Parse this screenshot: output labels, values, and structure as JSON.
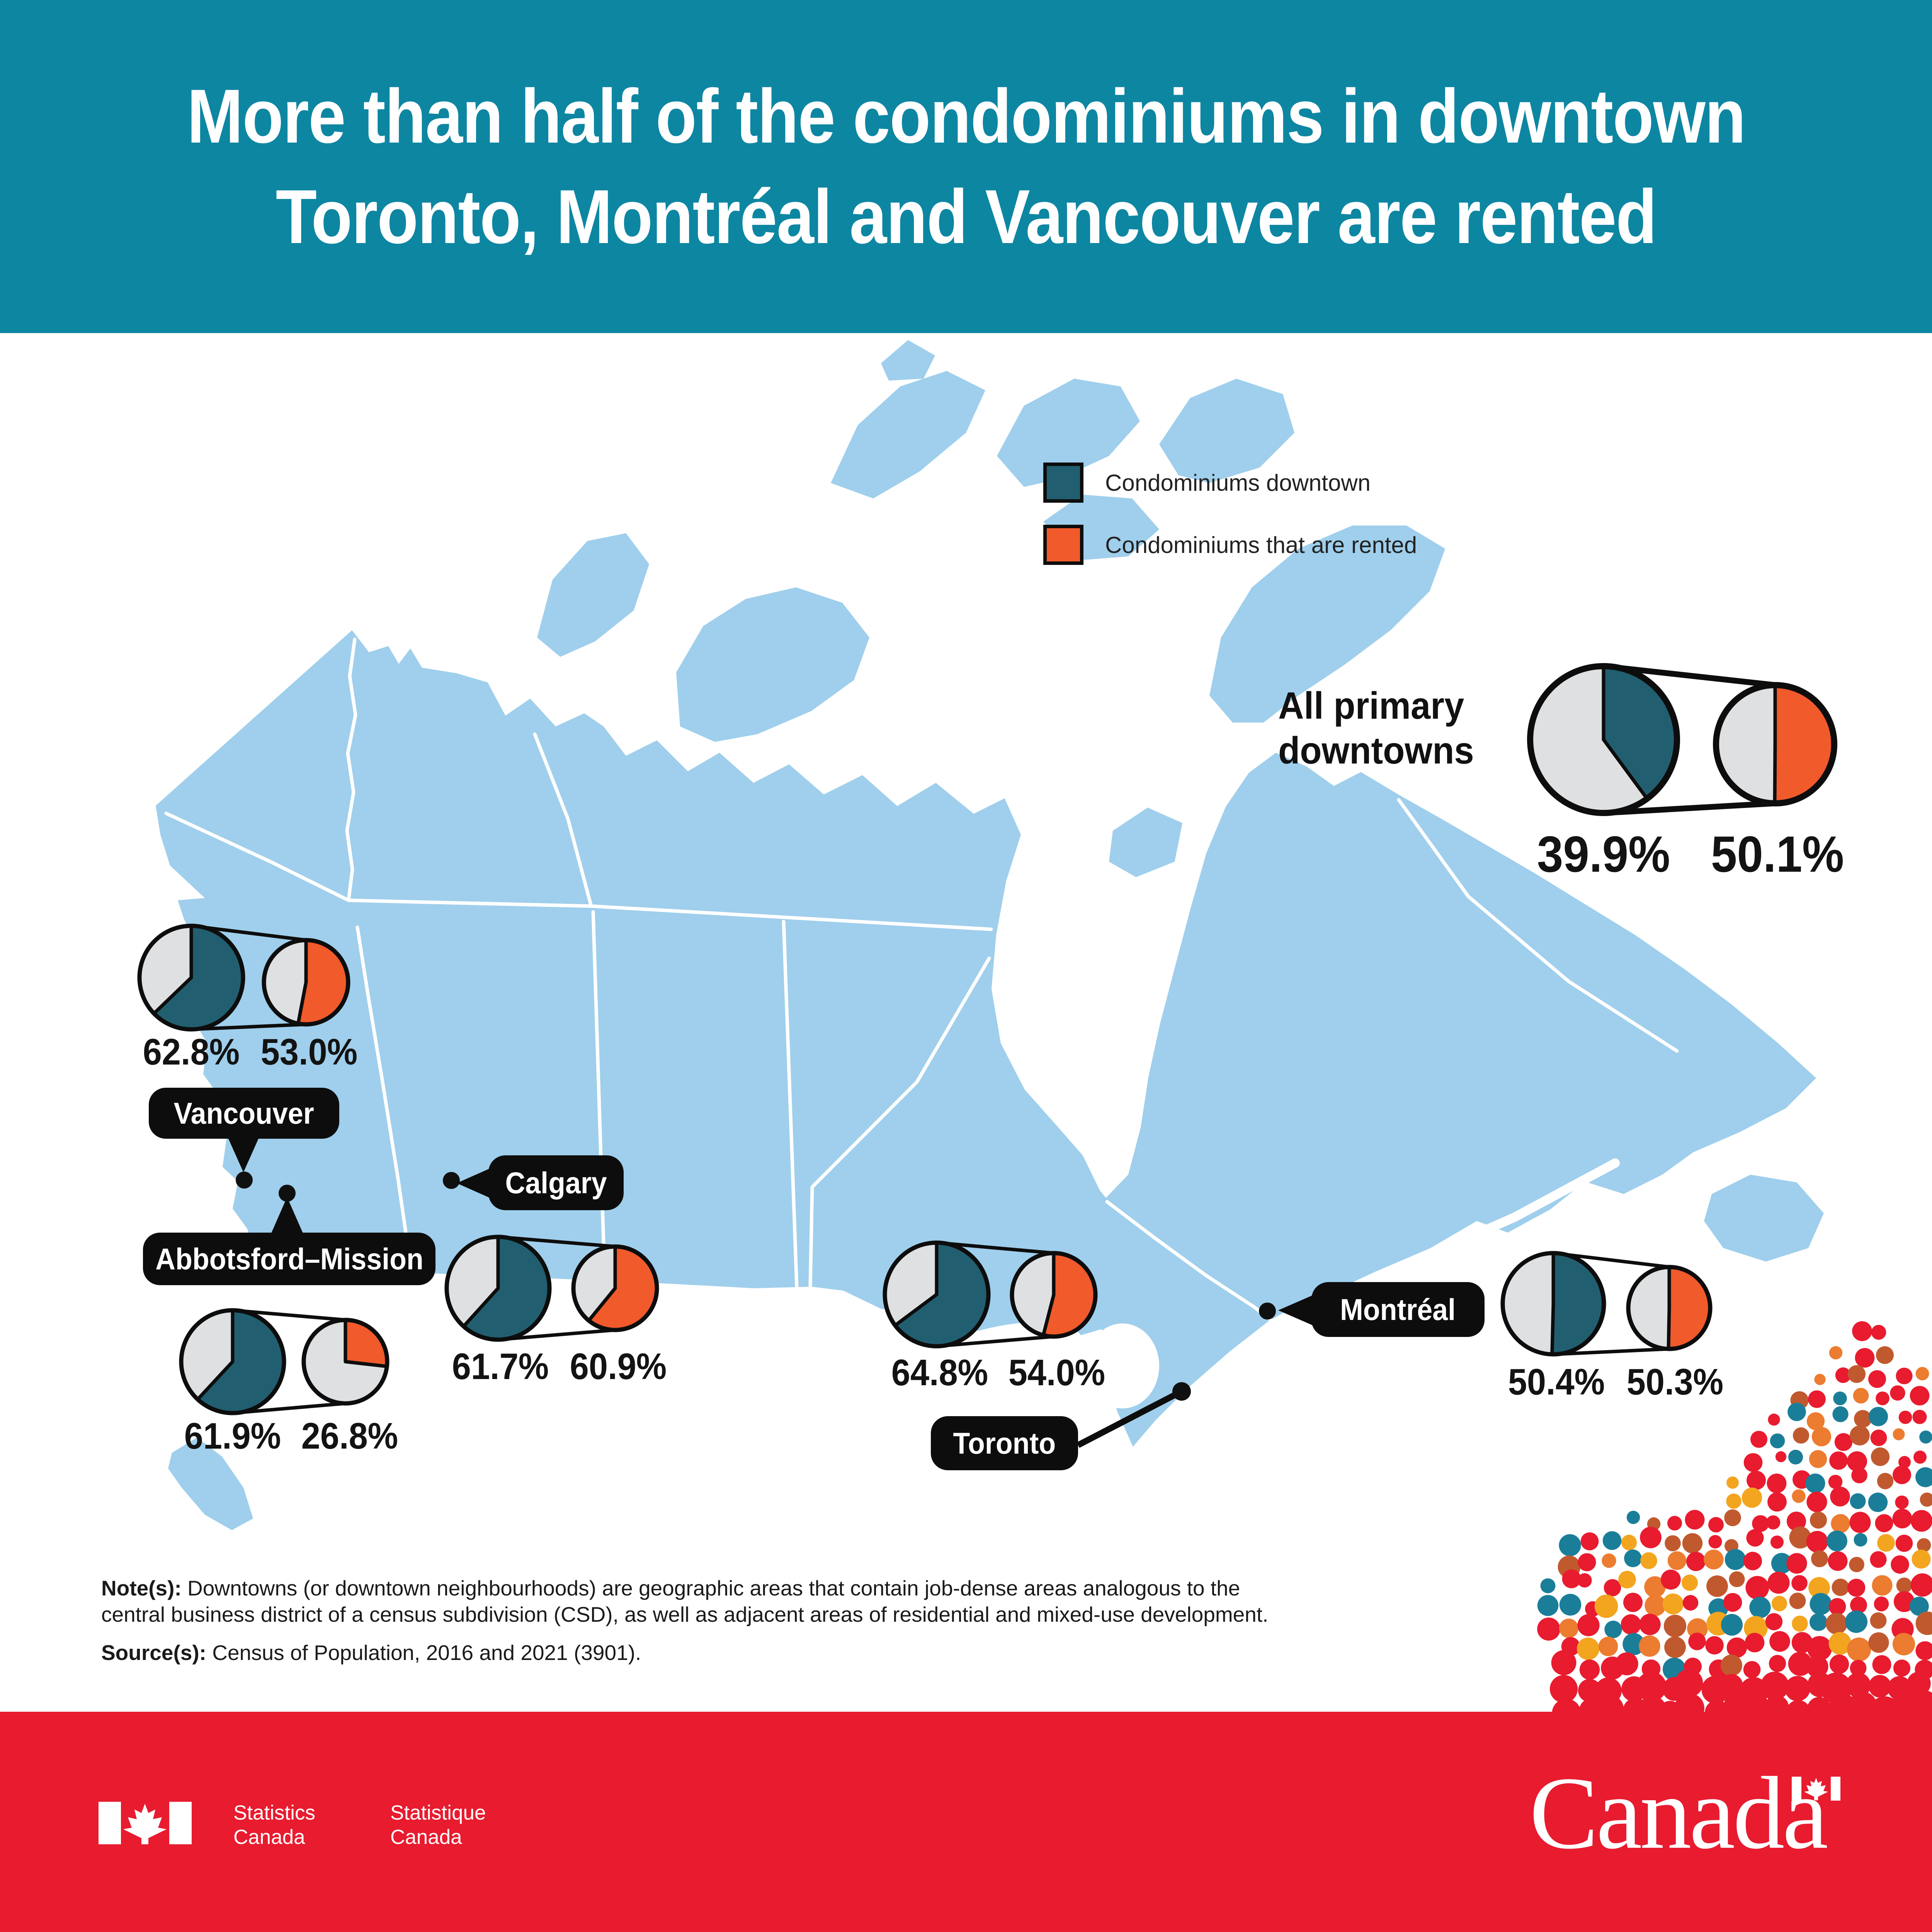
{
  "title": {
    "line1": "More than half of the condominiums in downtown",
    "line2": "Toronto, Montréal and Vancouver are rented"
  },
  "legend": {
    "items": [
      {
        "id": "condos-downtown",
        "label": "Condominiums downtown",
        "color": "#215F70"
      },
      {
        "id": "condos-rented",
        "label": "Condominiums that are rented",
        "color": "#F15A2B"
      }
    ]
  },
  "national": {
    "name_line1": "All primary",
    "name_line2": "downtowns",
    "downtown_pct": 39.9,
    "rented_pct": 50.1,
    "downtown_label": "39.9%",
    "rented_label": "50.1%"
  },
  "cities": [
    {
      "id": "vancouver",
      "name": "Vancouver",
      "downtown_pct": 62.8,
      "rented_pct": 53.0,
      "downtown_label": "62.8%",
      "rented_label": "53.0%"
    },
    {
      "id": "abbotsford",
      "name": "Abbotsford–Mission",
      "downtown_pct": 61.9,
      "rented_pct": 26.8,
      "downtown_label": "61.9%",
      "rented_label": "26.8%"
    },
    {
      "id": "calgary",
      "name": "Calgary",
      "downtown_pct": 61.7,
      "rented_pct": 60.9,
      "downtown_label": "61.7%",
      "rented_label": "60.9%"
    },
    {
      "id": "toronto",
      "name": "Toronto",
      "downtown_pct": 64.8,
      "rented_pct": 54.0,
      "downtown_label": "64.8%",
      "rented_label": "54.0%"
    },
    {
      "id": "montreal",
      "name": "Montréal",
      "downtown_pct": 50.4,
      "rented_pct": 50.3,
      "downtown_label": "50.4%",
      "rented_label": "50.3%"
    }
  ],
  "notes": {
    "note_label": "Note(s):",
    "note_line1": "Downtowns (or downtown neighbourhoods) are geographic areas that contain job-dense areas analogous to the",
    "note_line2": "central business district of a census subdivision (CSD), as well as adjacent areas of residential and mixed-use development.",
    "source_label": "Source(s):",
    "source_text": "Census of Population, 2016 and 2021 (3901)."
  },
  "footer": {
    "statcan_en_line1": "Statistics",
    "statcan_en_line2": "Canada",
    "statcan_fr_line1": "Statistique",
    "statcan_fr_line2": "Canada",
    "wordmark": "Canada"
  },
  "colors": {
    "header_teal": "#0D86A2",
    "map_blue": "#9FCFEC",
    "pie_teal": "#215F70",
    "pie_orange": "#F15A2B",
    "pie_gray": "#DEE0E1",
    "footer_red": "#E81B2F"
  },
  "chart_data": {
    "type": "pie",
    "title": "More than half of the condominiums in downtown Toronto, Montréal and Vancouver are rented",
    "legend": [
      "Condominiums downtown",
      "Condominiums that are rented"
    ],
    "legend_position": "top-right",
    "categories": [
      "All primary downtowns",
      "Vancouver",
      "Abbotsford–Mission",
      "Calgary",
      "Toronto",
      "Montréal"
    ],
    "series": [
      {
        "name": "Condominiums downtown (%)",
        "values": [
          39.9,
          62.8,
          61.9,
          61.7,
          64.8,
          50.4
        ]
      },
      {
        "name": "Condominiums that are rented (%)",
        "values": [
          50.1,
          53.0,
          26.8,
          60.9,
          54.0,
          50.3
        ]
      }
    ],
    "notes": "Each location shows two pies on a map of Canada: share of condominiums downtown (teal) and share of those condominiums that are rented (orange)."
  }
}
